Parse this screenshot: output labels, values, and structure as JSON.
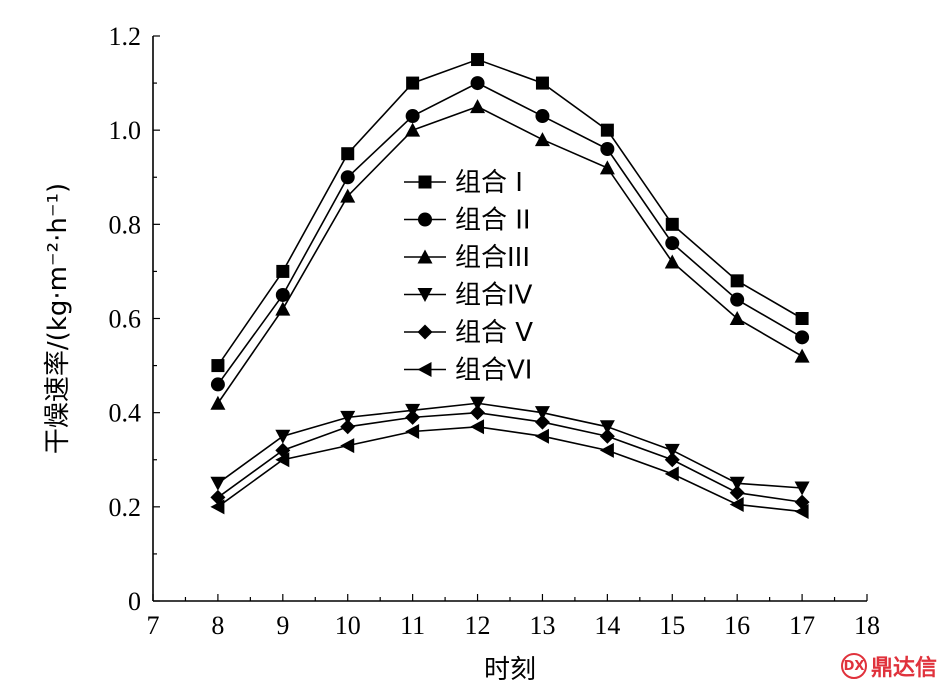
{
  "chart_data": {
    "type": "line",
    "title": "",
    "xlabel": "时刻",
    "ylabel": "干燥速率/(kg·m⁻²·h⁻¹)",
    "xlim": [
      7,
      18
    ],
    "ylim": [
      0,
      1.2
    ],
    "xticks": [
      "7",
      "8",
      "9",
      "10",
      "11",
      "12",
      "13",
      "14",
      "15",
      "16",
      "17",
      "18"
    ],
    "yticks": [
      "0",
      "0.2",
      "0.4",
      "0.6",
      "0.8",
      "1.0",
      "1.2"
    ],
    "x": [
      8,
      9,
      10,
      11,
      12,
      13,
      14,
      15,
      16,
      17
    ],
    "legend_position": "upper-center",
    "series": [
      {
        "name": "组合 I",
        "marker": "square",
        "values": [
          0.5,
          0.7,
          0.95,
          1.1,
          1.15,
          1.1,
          1.0,
          0.8,
          0.68,
          0.6
        ]
      },
      {
        "name": "组合 II",
        "marker": "circle",
        "values": [
          0.46,
          0.65,
          0.9,
          1.03,
          1.1,
          1.03,
          0.96,
          0.76,
          0.64,
          0.56
        ]
      },
      {
        "name": "组合III",
        "marker": "triangle-up",
        "values": [
          0.42,
          0.62,
          0.86,
          1.0,
          1.05,
          0.98,
          0.92,
          0.72,
          0.6,
          0.52
        ]
      },
      {
        "name": "组合IV",
        "marker": "triangle-down",
        "values": [
          0.25,
          0.35,
          0.39,
          0.405,
          0.42,
          0.4,
          0.37,
          0.32,
          0.25,
          0.24
        ]
      },
      {
        "name": "组合 V",
        "marker": "diamond",
        "values": [
          0.22,
          0.32,
          0.37,
          0.39,
          0.4,
          0.38,
          0.35,
          0.3,
          0.23,
          0.21
        ]
      },
      {
        "name": "组合VI",
        "marker": "triangle-left",
        "values": [
          0.2,
          0.3,
          0.33,
          0.36,
          0.37,
          0.35,
          0.32,
          0.27,
          0.205,
          0.19
        ]
      }
    ]
  },
  "watermark": {
    "text": "鼎达信",
    "logo_text": "DX"
  }
}
